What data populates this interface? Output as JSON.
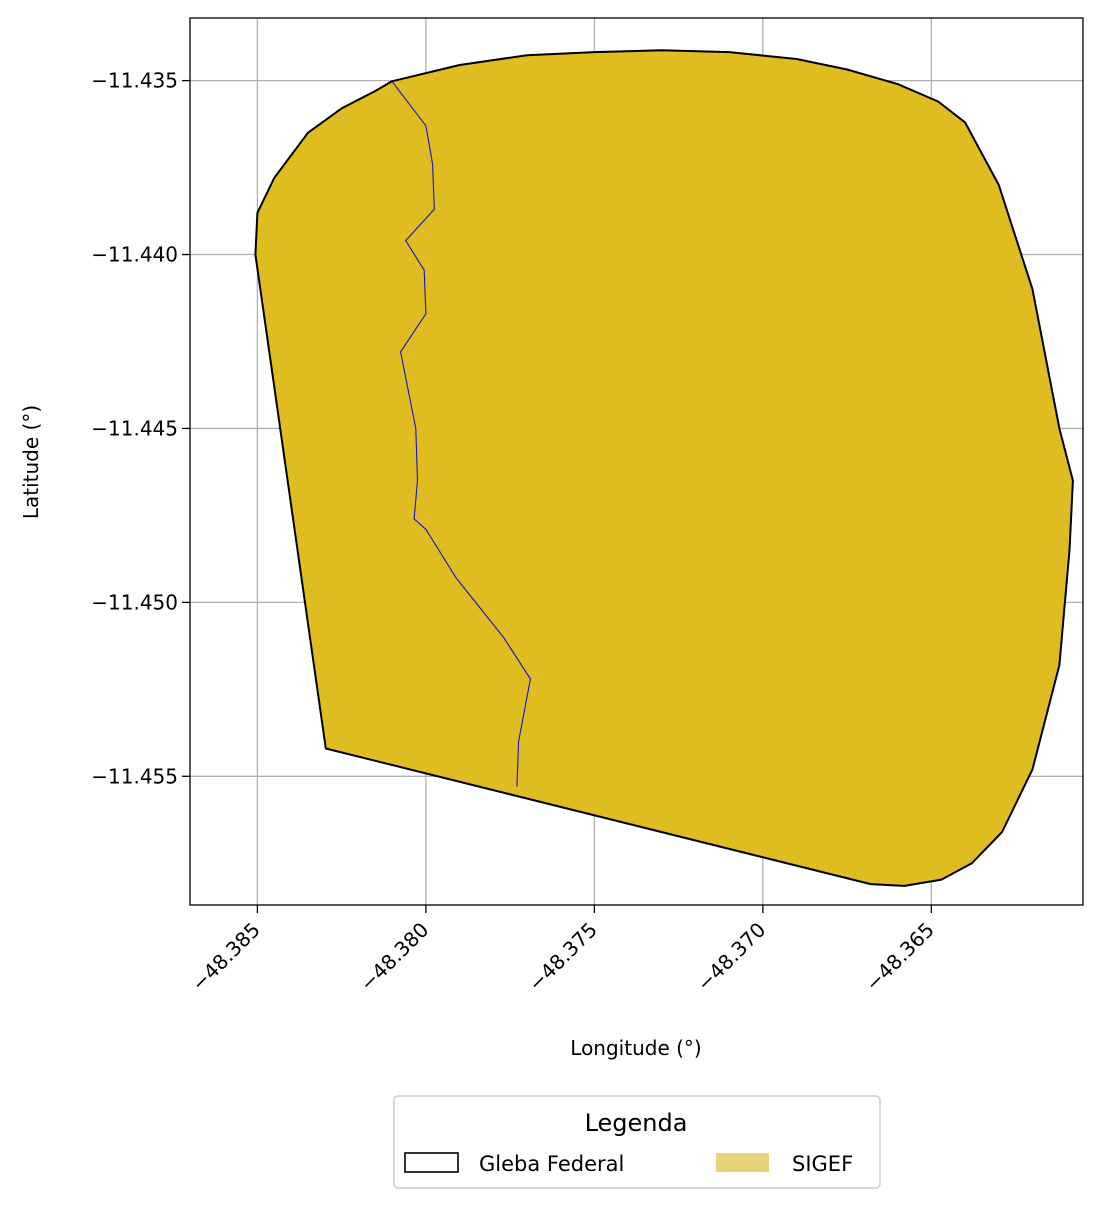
{
  "chart_data": {
    "type": "map",
    "xlabel": "Longitude (°)",
    "ylabel": "Latitude (°)",
    "xlim": [
      -48.387,
      -48.3605
    ],
    "ylim": [
      -11.4587,
      -11.4332
    ],
    "grid": true,
    "x_ticks": [
      {
        "value": -48.385,
        "label": "−48.385"
      },
      {
        "value": -48.38,
        "label": "−48.380"
      },
      {
        "value": -48.375,
        "label": "−48.375"
      },
      {
        "value": -48.37,
        "label": "−48.370"
      },
      {
        "value": -48.365,
        "label": "−48.365"
      }
    ],
    "y_ticks": [
      {
        "value": -11.435,
        "label": "−11.435"
      },
      {
        "value": -11.44,
        "label": "−11.440"
      },
      {
        "value": -11.445,
        "label": "−11.445"
      },
      {
        "value": -11.45,
        "label": "−11.450"
      },
      {
        "value": -11.455,
        "label": "−11.455"
      }
    ],
    "sigef_polygon": {
      "fill": "#dfbd20",
      "coords": [
        [
          -48.38101,
          -11.43502
        ],
        [
          -48.379,
          -11.43455
        ],
        [
          -48.377,
          -11.43427
        ],
        [
          -48.375,
          -11.43418
        ],
        [
          -48.373,
          -11.43413
        ],
        [
          -48.371,
          -11.43418
        ],
        [
          -48.369,
          -11.43438
        ],
        [
          -48.3675,
          -11.43468
        ],
        [
          -48.366,
          -11.4351
        ],
        [
          -48.3648,
          -11.4356
        ],
        [
          -48.364,
          -11.4362
        ],
        [
          -48.363,
          -11.438
        ],
        [
          -48.362,
          -11.441
        ],
        [
          -48.3612,
          -11.445
        ],
        [
          -48.3608,
          -11.4465
        ],
        [
          -48.3609,
          -11.4485
        ],
        [
          -48.3612,
          -11.4518
        ],
        [
          -48.362,
          -11.4548
        ],
        [
          -48.3629,
          -11.4566
        ],
        [
          -48.3638,
          -11.4575
        ],
        [
          -48.3647,
          -11.45797
        ],
        [
          -48.3658,
          -11.45815
        ],
        [
          -48.3668,
          -11.4581
        ],
        [
          -48.38297,
          -11.4542
        ],
        [
          -48.38506,
          -11.44
        ],
        [
          -48.385,
          -11.4388
        ],
        [
          -48.3845,
          -11.4378
        ],
        [
          -48.3835,
          -11.4365
        ],
        [
          -48.3825,
          -11.4358
        ],
        [
          -48.3815,
          -11.4353
        ]
      ]
    },
    "gleba_polygon": {
      "stroke": "#000000",
      "fill": "none"
    },
    "blue_line": {
      "stroke": "#1414c8",
      "coords": [
        [
          -48.38101,
          -11.43502
        ],
        [
          -48.38,
          -11.4363
        ],
        [
          -48.3798,
          -11.4374
        ],
        [
          -48.37975,
          -11.4387
        ],
        [
          -48.3806,
          -11.4396
        ],
        [
          -48.38005,
          -11.44045
        ],
        [
          -48.38,
          -11.4417
        ],
        [
          -48.38075,
          -11.4428
        ],
        [
          -48.3803,
          -11.445
        ],
        [
          -48.38025,
          -11.4465
        ],
        [
          -48.38035,
          -11.4476
        ],
        [
          -48.38,
          -11.4479
        ],
        [
          -48.3791,
          -11.4493
        ],
        [
          -48.3777,
          -11.451
        ],
        [
          -48.3769,
          -11.4522
        ],
        [
          -48.37725,
          -11.454
        ],
        [
          -48.3773,
          -11.4553
        ]
      ]
    },
    "legend": {
      "title": "Legenda",
      "entries": [
        {
          "label": "Gleba Federal",
          "style": "outline",
          "stroke": "#000000"
        },
        {
          "label": "SIGEF",
          "style": "fill",
          "fill": "#e8d37a"
        }
      ]
    }
  }
}
